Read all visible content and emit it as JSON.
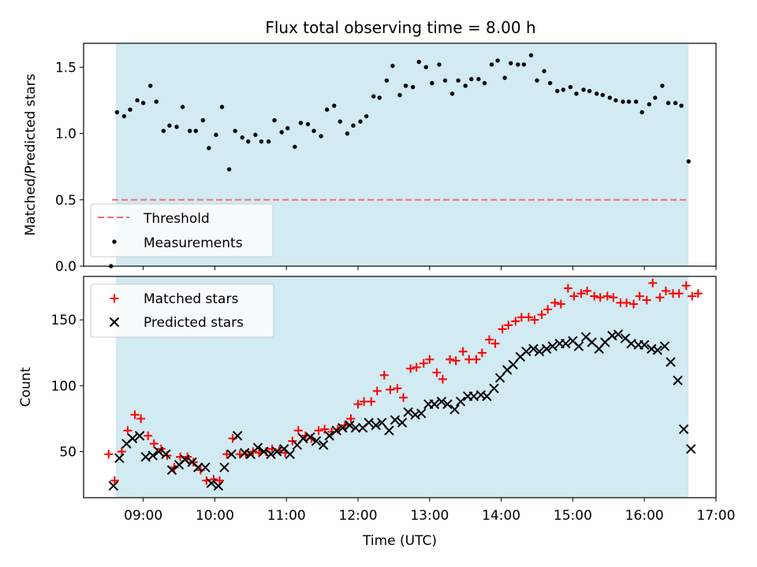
{
  "figure": {
    "title": "Flux total observing time = 8.00 h",
    "xlabel": "Time (UTC)",
    "x_ticks": [
      "09:00",
      "10:00",
      "11:00",
      "12:00",
      "13:00",
      "14:00",
      "15:00",
      "16:00",
      "17:00"
    ],
    "colors": {
      "band": "#add8e6",
      "threshold": "#f07070",
      "measurements": "#000000",
      "matched": "#ff0000",
      "predicted": "#000000"
    }
  },
  "chart_data": [
    {
      "type": "scatter",
      "ylabel": "Matched/Predicted stars",
      "xlim": [
        "08:10",
        "17:00"
      ],
      "ylim": [
        0,
        1.68
      ],
      "y_ticks": [
        "0.0",
        "0.5",
        "1.0",
        "1.5"
      ],
      "observing_window": [
        "08:37",
        "16:37"
      ],
      "threshold": {
        "name": "Threshold",
        "value": 0.5
      },
      "legend": {
        "placement": "lower-left",
        "entries": [
          "Threshold",
          "Measurements"
        ]
      },
      "series": [
        {
          "name": "Measurements",
          "x": [
            "08:33",
            "08:38",
            "08:44",
            "08:49",
            "08:55",
            "09:00",
            "09:06",
            "09:11",
            "09:17",
            "09:22",
            "09:28",
            "09:33",
            "09:39",
            "09:44",
            "09:50",
            "09:55",
            "10:01",
            "10:06",
            "10:12",
            "10:17",
            "10:23",
            "10:28",
            "10:34",
            "10:39",
            "10:45",
            "10:50",
            "10:56",
            "11:01",
            "11:07",
            "11:12",
            "11:18",
            "11:23",
            "11:29",
            "11:34",
            "11:40",
            "11:45",
            "11:51",
            "11:56",
            "12:02",
            "12:07",
            "12:13",
            "12:18",
            "12:24",
            "12:29",
            "12:35",
            "12:40",
            "12:46",
            "12:51",
            "12:57",
            "13:02",
            "13:08",
            "13:13",
            "13:19",
            "13:24",
            "13:30",
            "13:35",
            "13:41",
            "13:46",
            "13:52",
            "13:57",
            "14:03",
            "14:08",
            "14:14",
            "14:19",
            "14:25",
            "14:30",
            "14:36",
            "14:41",
            "14:47",
            "14:52",
            "14:58",
            "15:03",
            "15:09",
            "15:14",
            "15:20",
            "15:25",
            "15:31",
            "15:36",
            "15:42",
            "15:47",
            "15:53",
            "15:58",
            "16:04",
            "16:09",
            "16:15",
            "16:20",
            "16:26",
            "16:31",
            "16:37"
          ],
          "y": [
            0.0,
            1.16,
            1.13,
            1.18,
            1.25,
            1.23,
            1.36,
            1.24,
            1.02,
            1.06,
            1.05,
            1.2,
            1.02,
            1.02,
            1.1,
            0.89,
            0.99,
            1.2,
            0.73,
            1.02,
            0.97,
            0.94,
            0.99,
            0.94,
            0.94,
            1.1,
            1.01,
            1.04,
            0.9,
            1.08,
            1.07,
            1.02,
            0.98,
            1.18,
            1.21,
            1.09,
            1.0,
            1.06,
            1.09,
            1.13,
            1.28,
            1.27,
            1.4,
            1.51,
            1.29,
            1.36,
            1.35,
            1.54,
            1.5,
            1.38,
            1.52,
            1.4,
            1.3,
            1.4,
            1.36,
            1.41,
            1.41,
            1.38,
            1.52,
            1.55,
            1.42,
            1.53,
            1.52,
            1.52,
            1.59,
            1.4,
            1.47,
            1.38,
            1.32,
            1.33,
            1.35,
            1.3,
            1.33,
            1.32,
            1.3,
            1.29,
            1.27,
            1.25,
            1.24,
            1.24,
            1.24,
            1.16,
            1.22,
            1.27,
            1.36,
            1.23,
            1.23,
            1.21,
            0.79
          ]
        }
      ]
    },
    {
      "type": "scatter",
      "ylabel": "Count",
      "xlim": [
        "08:10",
        "17:00"
      ],
      "ylim": [
        15,
        183
      ],
      "y_ticks": [
        "50",
        "100",
        "150"
      ],
      "observing_window": [
        "08:37",
        "16:37"
      ],
      "legend": {
        "placement": "upper-left",
        "entries": [
          "Matched stars",
          "Predicted stars"
        ]
      },
      "series": [
        {
          "name": "Matched stars",
          "marker": "plus",
          "x": [
            "08:31",
            "08:36",
            "08:42",
            "08:47",
            "08:53",
            "08:58",
            "09:04",
            "09:09",
            "09:15",
            "09:20",
            "09:26",
            "09:31",
            "09:37",
            "09:42",
            "09:48",
            "09:53",
            "09:59",
            "10:04",
            "10:10",
            "10:15",
            "10:21",
            "10:26",
            "10:32",
            "10:37",
            "10:43",
            "10:48",
            "10:54",
            "10:59",
            "11:05",
            "11:10",
            "11:16",
            "11:21",
            "11:27",
            "11:32",
            "11:38",
            "11:43",
            "11:49",
            "11:54",
            "12:00",
            "12:05",
            "12:11",
            "12:16",
            "12:22",
            "12:27",
            "12:33",
            "12:38",
            "12:44",
            "12:49",
            "12:55",
            "13:00",
            "13:06",
            "13:11",
            "13:17",
            "13:22",
            "13:28",
            "13:33",
            "13:39",
            "13:44",
            "13:50",
            "13:55",
            "14:01",
            "14:06",
            "14:12",
            "14:17",
            "14:23",
            "14:28",
            "14:34",
            "14:39",
            "14:45",
            "14:50",
            "14:56",
            "15:01",
            "15:07",
            "15:12",
            "15:18",
            "15:23",
            "15:29",
            "15:34",
            "15:40",
            "15:45",
            "15:51",
            "15:56",
            "16:02",
            "16:07",
            "16:13",
            "16:18",
            "16:24",
            "16:29",
            "16:35",
            "16:40",
            "16:45"
          ],
          "y": [
            48,
            28,
            50,
            66,
            78,
            75,
            62,
            56,
            52,
            47,
            38,
            46,
            46,
            42,
            36,
            28,
            29,
            28,
            48,
            60,
            48,
            48,
            50,
            49,
            50,
            52,
            51,
            49,
            58,
            66,
            62,
            60,
            66,
            67,
            65,
            67,
            70,
            75,
            86,
            88,
            88,
            96,
            108,
            97,
            98,
            91,
            113,
            114,
            117,
            120,
            110,
            105,
            120,
            119,
            126,
            120,
            120,
            125,
            135,
            132,
            143,
            146,
            149,
            152,
            152,
            150,
            154,
            158,
            163,
            162,
            174,
            168,
            170,
            172,
            168,
            167,
            168,
            167,
            163,
            163,
            162,
            168,
            165,
            178,
            167,
            172,
            170,
            170,
            176,
            168,
            170
          ]
        },
        {
          "name": "Predicted stars",
          "marker": "x",
          "x": [
            "08:35",
            "08:40",
            "08:46",
            "08:51",
            "08:57",
            "09:02",
            "09:08",
            "09:13",
            "09:19",
            "09:24",
            "09:30",
            "09:35",
            "09:41",
            "09:46",
            "09:52",
            "09:57",
            "10:03",
            "10:08",
            "10:14",
            "10:19",
            "10:25",
            "10:30",
            "10:36",
            "10:41",
            "10:47",
            "10:52",
            "10:58",
            "11:03",
            "11:09",
            "11:14",
            "11:20",
            "11:25",
            "11:31",
            "11:36",
            "11:42",
            "11:47",
            "11:53",
            "11:58",
            "12:04",
            "12:09",
            "12:15",
            "12:20",
            "12:26",
            "12:31",
            "12:37",
            "12:42",
            "12:48",
            "12:53",
            "12:59",
            "13:04",
            "13:10",
            "13:15",
            "13:21",
            "13:26",
            "13:32",
            "13:37",
            "13:43",
            "13:48",
            "13:54",
            "13:59",
            "14:05",
            "14:10",
            "14:16",
            "14:21",
            "14:27",
            "14:32",
            "14:38",
            "14:43",
            "14:49",
            "14:54",
            "15:00",
            "15:05",
            "15:11",
            "15:16",
            "15:22",
            "15:27",
            "15:33",
            "15:38",
            "15:44",
            "15:49",
            "15:55",
            "16:00",
            "16:06",
            "16:11",
            "16:17",
            "16:22",
            "16:28",
            "16:33",
            "16:39"
          ],
          "y": [
            24,
            45,
            56,
            60,
            62,
            46,
            47,
            50,
            48,
            36,
            40,
            44,
            42,
            38,
            38,
            26,
            24,
            38,
            48,
            62,
            49,
            48,
            53,
            50,
            48,
            50,
            52,
            48,
            55,
            60,
            61,
            58,
            55,
            62,
            66,
            68,
            70,
            68,
            68,
            72,
            70,
            72,
            66,
            74,
            72,
            80,
            78,
            79,
            86,
            86,
            88,
            86,
            82,
            88,
            92,
            92,
            93,
            92,
            98,
            106,
            112,
            116,
            122,
            126,
            128,
            126,
            128,
            130,
            132,
            132,
            134,
            130,
            137,
            133,
            128,
            133,
            138,
            139,
            136,
            132,
            131,
            131,
            128,
            127,
            130,
            118,
            104,
            67,
            52
          ]
        }
      ]
    }
  ]
}
